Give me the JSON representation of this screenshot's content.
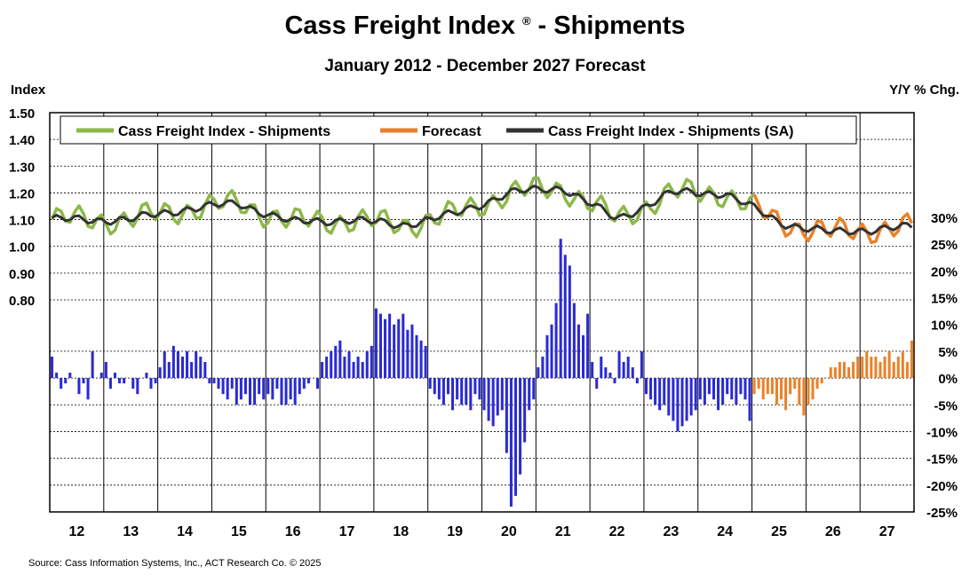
{
  "chart_data": {
    "type": "line+bar",
    "title": "Cass Freight Index",
    "title_mark": "®",
    "title_suffix": "- Shipments",
    "subtitle": "January 2012 - December 2027 Forecast",
    "left_axis_title": "Index",
    "right_axis_title": "Y/Y % Chg.",
    "left_ticks": [
      "1.50",
      "1.40",
      "1.30",
      "1.20",
      "1.10",
      "1.00",
      "0.90",
      "0.80"
    ],
    "left_tick_values": [
      1.5,
      1.4,
      1.3,
      1.2,
      1.1,
      1.0,
      0.9,
      0.8
    ],
    "right_ticks": [
      "30%",
      "25%",
      "20%",
      "15%",
      "10%",
      "5%",
      "0%",
      "-5%",
      "-10%",
      "-15%",
      "-20%",
      "-25%"
    ],
    "right_tick_values": [
      30,
      25,
      20,
      15,
      10,
      5,
      0,
      -5,
      -10,
      -15,
      -20,
      -25
    ],
    "x_labels": [
      "12",
      "13",
      "14",
      "15",
      "16",
      "17",
      "18",
      "19",
      "20",
      "21",
      "22",
      "23",
      "24",
      "25",
      "26",
      "27"
    ],
    "legend": [
      {
        "label": "Cass Freight Index - Shipments",
        "color": "#8db84a"
      },
      {
        "label": "Forecast",
        "color": "#e8822a"
      },
      {
        "label": "Cass Freight Index - Shipments (SA)",
        "color": "#333333"
      }
    ],
    "source": "Source:  Cass Information  Systems, Inc., ACT Research Co. © 2025",
    "colors": {
      "nsa": "#8db84a",
      "sa": "#333333",
      "forecast": "#e8822a",
      "bar": "#2b2bd1",
      "bar_forecast": "#e8822a"
    },
    "series": [
      {
        "name": "Cass Freight Index - Shipments (SA)",
        "key": "sa",
        "interval": "annual-points",
        "values": [
          1.1,
          1.1,
          1.14,
          1.16,
          1.09,
          1.1,
          1.08,
          1.12,
          1.2,
          1.22,
          1.1,
          1.2,
          1.2,
          1.09,
          1.05,
          1.07
        ]
      }
    ],
    "yoy": {
      "months": [
        4,
        1,
        -2,
        -1,
        1,
        0,
        -3,
        -1,
        -4,
        5,
        0,
        1,
        3,
        -2,
        1,
        -1,
        -1,
        0,
        -2,
        -3,
        0,
        1,
        -2,
        -1,
        2,
        5,
        3,
        6,
        5,
        4,
        5,
        3,
        5,
        4,
        3,
        -1,
        -1,
        -2,
        -3,
        -4,
        -2,
        -5,
        -4,
        -3,
        -5,
        -5,
        -3,
        -4,
        -3,
        -4,
        -2,
        -5,
        -5,
        -4,
        -5,
        -3,
        -2,
        -1,
        0,
        -2,
        3,
        4,
        5,
        6,
        7,
        4,
        5,
        3,
        4,
        3,
        5,
        6,
        13,
        12,
        11,
        12,
        10,
        11,
        12,
        9,
        10,
        8,
        7,
        6,
        -2,
        -3,
        -4,
        -5,
        -3,
        -6,
        -4,
        -5,
        -5,
        -6,
        -3,
        -4,
        -6,
        -8,
        -9,
        -7,
        -6,
        -14,
        -24,
        -22,
        -18,
        -12,
        -6,
        -4,
        2,
        4,
        8,
        10,
        14,
        26,
        23,
        21,
        14,
        10,
        8,
        12,
        3,
        -2,
        4,
        2,
        1,
        -1,
        5,
        3,
        4,
        2,
        -1,
        5,
        -3,
        -4,
        -5,
        -6,
        -5,
        -7,
        -8,
        -10,
        -9,
        -8,
        -7,
        -6,
        -4,
        -5,
        -3,
        -4,
        -6,
        -5,
        -3,
        -4,
        -5,
        -3,
        -4,
        -8,
        -3,
        -2,
        -4,
        -3,
        -3,
        -5,
        -4,
        -6,
        -3,
        -2,
        -5,
        -7,
        -5,
        -4,
        -2,
        -1,
        0,
        2,
        2,
        3,
        3,
        2,
        3,
        4,
        4,
        5,
        4,
        4,
        3,
        4,
        5,
        3,
        4,
        5,
        3,
        7
      ],
      "forecast_from_month": 157
    }
  }
}
